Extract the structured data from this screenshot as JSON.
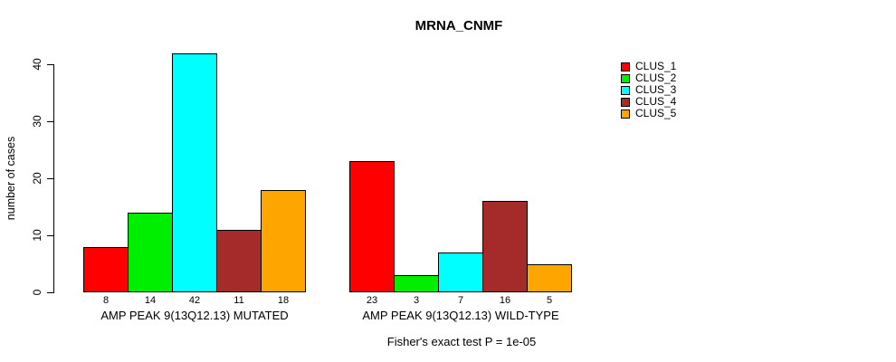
{
  "title": "MRNA_CNMF",
  "caption": "Fisher's exact test P = 1e-05",
  "chart_data": {
    "type": "bar",
    "title": "MRNA_CNMF",
    "xlabel": "",
    "ylabel": "number of cases",
    "ylim": [
      0,
      40
    ],
    "yticks": [
      0,
      10,
      20,
      30,
      40
    ],
    "grid": false,
    "legend_position": "right",
    "show_value_labels": true,
    "categories": [
      "AMP PEAK  9(13Q12.13) MUTATED",
      "AMP PEAK  9(13Q12.13) WILD-TYPE"
    ],
    "series": [
      {
        "name": "CLUS_1",
        "color": "#FF0000",
        "values": [
          8,
          23
        ]
      },
      {
        "name": "CLUS_2",
        "color": "#00EE00",
        "values": [
          14,
          3
        ]
      },
      {
        "name": "CLUS_3",
        "color": "#00FFFF",
        "values": [
          42,
          7
        ]
      },
      {
        "name": "CLUS_4",
        "color": "#A52A2A",
        "values": [
          11,
          16
        ]
      },
      {
        "name": "CLUS_5",
        "color": "#FFA500",
        "values": [
          18,
          5
        ]
      }
    ],
    "annotation": "Fisher's exact test P = 1e-05"
  }
}
